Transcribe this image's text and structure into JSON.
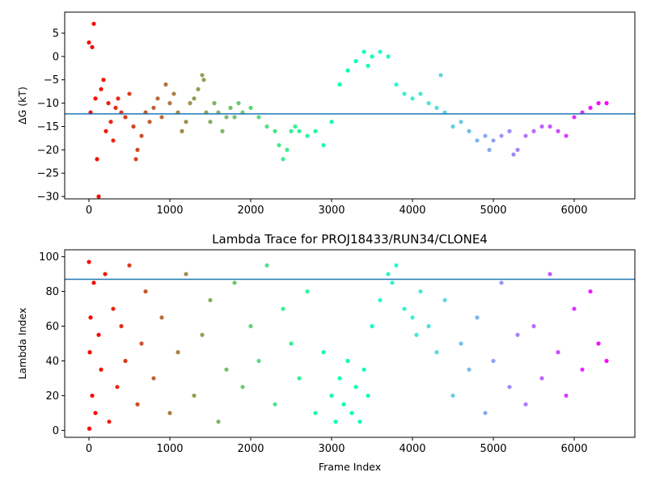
{
  "chart_data": [
    {
      "type": "scatter",
      "title": "",
      "xlabel": "",
      "ylabel": "ΔG (kT)",
      "xlim": [
        -300,
        6750
      ],
      "ylim": [
        -30.5,
        9.5
      ],
      "xticks": [
        0,
        1000,
        2000,
        3000,
        4000,
        5000,
        6000
      ],
      "yticks": [
        -30,
        -25,
        -20,
        -15,
        -10,
        -5,
        0,
        5
      ],
      "hline": -12.3,
      "hline_color": "#1f77b4",
      "colormap": "rainbow",
      "color_range_frames": [
        0,
        6400
      ],
      "series": [
        {
          "x": [
            0,
            20,
            40,
            60,
            80,
            100,
            120,
            150,
            180,
            210,
            240,
            270,
            300,
            330,
            360,
            400,
            450,
            500,
            550,
            580,
            600,
            650,
            700,
            750,
            800,
            850,
            900,
            950,
            1000,
            1050,
            1100,
            1150,
            1200,
            1250,
            1300,
            1350,
            1400,
            1420,
            1450,
            1500,
            1550,
            1600,
            1650,
            1700,
            1750,
            1800,
            1850,
            1900,
            2000,
            2100,
            2200,
            2300,
            2350,
            2400,
            2450,
            2500,
            2550,
            2600,
            2700,
            2800,
            2900,
            3000,
            3100,
            3200,
            3300,
            3400,
            3450,
            3500,
            3600,
            3700,
            3800,
            3900,
            4000,
            4100,
            4200,
            4300,
            4350,
            4400,
            4500,
            4600,
            4700,
            4800,
            4900,
            4950,
            5000,
            5100,
            5200,
            5250,
            5300,
            5400,
            5500,
            5600,
            5700,
            5800,
            5900,
            6000,
            6100,
            6200,
            6300,
            6400
          ],
          "y": [
            3,
            -12,
            2,
            7,
            -9,
            -22,
            -30,
            -7,
            -5,
            -16,
            -10,
            -14,
            -18,
            -11,
            -9,
            -12,
            -13,
            -8,
            -15,
            -22,
            -20,
            -17,
            -12,
            -14,
            -11,
            -9,
            -13,
            -6,
            -10,
            -8,
            -12,
            -16,
            -14,
            -10,
            -9,
            -7,
            -4,
            -5,
            -12,
            -14,
            -10,
            -12,
            -16,
            -13,
            -11,
            -13,
            -10,
            -12,
            -11,
            -13,
            -15,
            -16,
            -19,
            -22,
            -20,
            -16,
            -15,
            -16,
            -17,
            -16,
            -19,
            -14,
            -6,
            -3,
            -1,
            1,
            -2,
            0,
            1,
            0,
            -6,
            -8,
            -9,
            -8,
            -10,
            -11,
            -4,
            -12,
            -15,
            -14,
            -16,
            -18,
            -17,
            -20,
            -18,
            -17,
            -16,
            -21,
            -20,
            -17,
            -16,
            -15,
            -15,
            -16,
            -17,
            -13,
            -12,
            -11,
            -10,
            -10
          ]
        }
      ]
    },
    {
      "type": "scatter",
      "title": "Lambda Trace for PROJ18433/RUN34/CLONE4",
      "xlabel": "Frame Index",
      "ylabel": "Lambda Index",
      "xlim": [
        -300,
        6750
      ],
      "ylim": [
        -4,
        104
      ],
      "xticks": [
        0,
        1000,
        2000,
        3000,
        4000,
        5000,
        6000
      ],
      "yticks": [
        0,
        20,
        40,
        60,
        80,
        100
      ],
      "hline": 87,
      "hline_color": "#1f77b4",
      "colormap": "rainbow",
      "color_range_frames": [
        0,
        6400
      ],
      "series": [
        {
          "x": [
            0,
            5,
            10,
            20,
            40,
            60,
            80,
            120,
            150,
            200,
            250,
            300,
            350,
            400,
            450,
            500,
            600,
            650,
            700,
            800,
            900,
            1000,
            1100,
            1200,
            1300,
            1400,
            1500,
            1600,
            1700,
            1800,
            1900,
            2000,
            2100,
            2200,
            2300,
            2400,
            2500,
            2600,
            2700,
            2800,
            2900,
            3000,
            3050,
            3100,
            3150,
            3200,
            3250,
            3300,
            3350,
            3400,
            3450,
            3500,
            3600,
            3700,
            3750,
            3800,
            3900,
            4000,
            4050,
            4100,
            4200,
            4300,
            4400,
            4500,
            4600,
            4700,
            4800,
            4900,
            5000,
            5100,
            5200,
            5300,
            5400,
            5500,
            5600,
            5700,
            5800,
            5900,
            6000,
            6100,
            6200,
            6300,
            6400
          ],
          "y": [
            97,
            1,
            45,
            65,
            20,
            85,
            10,
            55,
            35,
            90,
            5,
            70,
            25,
            60,
            40,
            95,
            15,
            50,
            80,
            30,
            65,
            10,
            45,
            90,
            20,
            55,
            75,
            5,
            35,
            85,
            25,
            60,
            40,
            95,
            15,
            70,
            50,
            30,
            80,
            10,
            45,
            20,
            5,
            30,
            15,
            40,
            10,
            25,
            5,
            35,
            20,
            60,
            75,
            90,
            85,
            95,
            70,
            65,
            55,
            80,
            60,
            45,
            75,
            20,
            50,
            35,
            65,
            10,
            40,
            85,
            25,
            55,
            15,
            60,
            30,
            90,
            45,
            20,
            70,
            35,
            80,
            50,
            40
          ]
        }
      ]
    }
  ]
}
